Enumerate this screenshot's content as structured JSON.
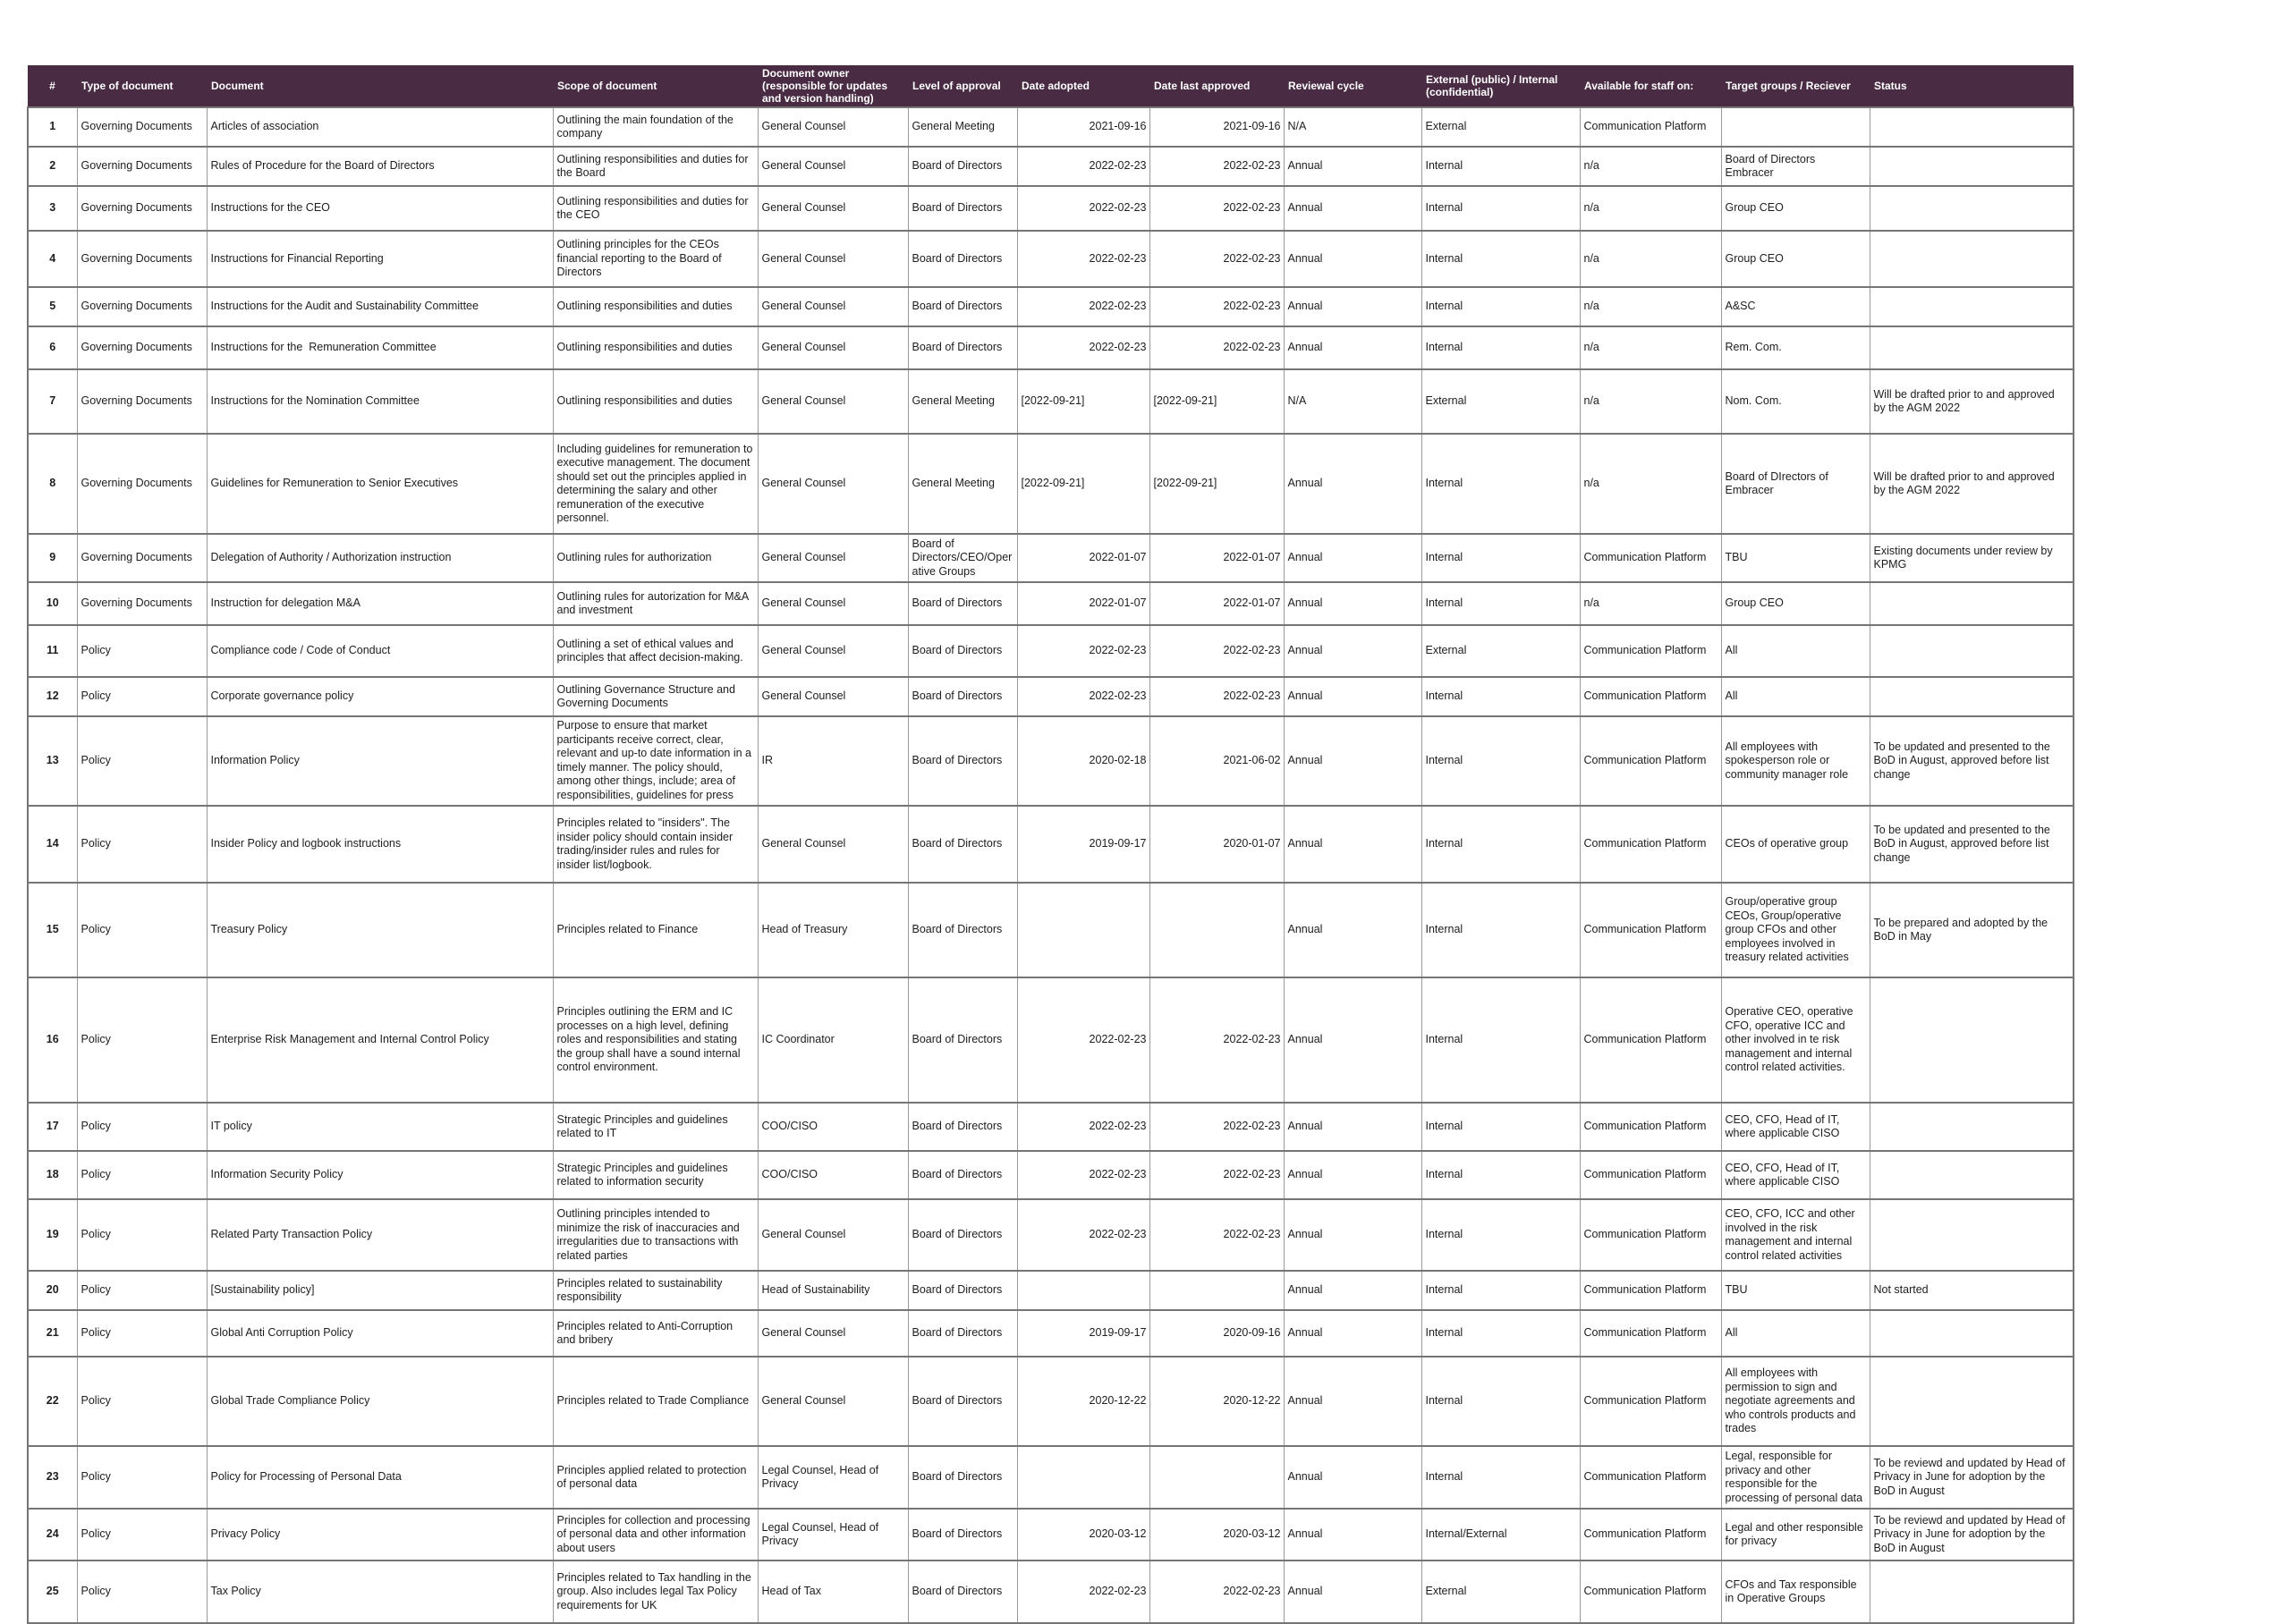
{
  "theme": {
    "header_bg": "#4a2b44",
    "header_text": "#ffffff",
    "grid_vertical": "#9a9a9a",
    "grid_horizontal": "#757575",
    "body_text": "#1d1d1d",
    "page_bg": "#ffffff"
  },
  "table": {
    "columns": [
      {
        "key": "num",
        "label": "#"
      },
      {
        "key": "type",
        "label": "Type of document"
      },
      {
        "key": "document",
        "label": "Document"
      },
      {
        "key": "scope",
        "label": "Scope of document"
      },
      {
        "key": "owner",
        "label": "Document owner (responsible for updates and version handling)"
      },
      {
        "key": "approval",
        "label": "Level of approval"
      },
      {
        "key": "date_adopted",
        "label": "Date adopted"
      },
      {
        "key": "date_last_approved",
        "label": "Date last approved"
      },
      {
        "key": "reviewal_cycle",
        "label": "Reviewal cycle"
      },
      {
        "key": "visibility",
        "label": "External (public) / Internal (confidential)"
      },
      {
        "key": "available_on",
        "label": "Available for staff on:"
      },
      {
        "key": "target_groups",
        "label": "Target groups / Reciever"
      },
      {
        "key": "status",
        "label": "Status"
      }
    ],
    "rows": [
      [
        "1",
        "Governing Documents",
        "Articles of association",
        "Outlining the main foundation of the company",
        "General Counsel",
        "General Meeting",
        "2021-09-16",
        "2021-09-16",
        "N/A",
        "External",
        "Communication Platform",
        "",
        ""
      ],
      [
        "2",
        "Governing Documents",
        "Rules of Procedure for the Board of Directors",
        "Outlining responsibilities and duties for the Board",
        "General Counsel",
        "Board of Directors",
        "2022-02-23",
        "2022-02-23",
        "Annual",
        "Internal",
        "n/a",
        "Board of Directors Embracer",
        ""
      ],
      [
        "3",
        "Governing Documents",
        "Instructions for the CEO",
        "Outlining responsibilities and duties for the CEO",
        "General Counsel",
        "Board of Directors",
        "2022-02-23",
        "2022-02-23",
        "Annual",
        "Internal",
        "n/a",
        "Group CEO",
        ""
      ],
      [
        "4",
        "Governing Documents",
        "Instructions for Financial Reporting",
        "Outlining principles for the CEOs financial reporting to the Board of Directors",
        "General Counsel",
        "Board of Directors",
        "2022-02-23",
        "2022-02-23",
        "Annual",
        "Internal",
        "n/a",
        "Group CEO",
        ""
      ],
      [
        "5",
        "Governing Documents",
        "Instructions for the Audit and Sustainability Committee",
        "Outlining responsibilities and duties",
        "General Counsel",
        "Board of Directors",
        "2022-02-23",
        "2022-02-23",
        "Annual",
        "Internal",
        "n/a",
        "A&SC",
        ""
      ],
      [
        "6",
        "Governing Documents",
        "Instructions for the  Remuneration Committee",
        "Outlining responsibilities and duties",
        "General Counsel",
        "Board of Directors",
        "2022-02-23",
        "2022-02-23",
        "Annual",
        "Internal",
        "n/a",
        "Rem. Com.",
        ""
      ],
      [
        "7",
        "Governing Documents",
        "Instructions for the Nomination Committee",
        "Outlining responsibilities and duties",
        "General Counsel",
        "General Meeting",
        "[2022-09-21]",
        "[2022-09-21]",
        "N/A",
        "External",
        "n/a",
        "Nom. Com.",
        "Will be drafted prior to and approved by the AGM 2022"
      ],
      [
        "8",
        "Governing Documents",
        "Guidelines for Remuneration to Senior Executives",
        "Including guidelines for remuneration to executive management. The document should set out the principles applied in determining the salary and other remuneration of the executive personnel.",
        "General Counsel",
        "General Meeting",
        "[2022-09-21]",
        "[2022-09-21]",
        "Annual",
        "Internal",
        "n/a",
        "Board of DIrectors of Embracer",
        "Will be drafted prior to and approved by the AGM 2022"
      ],
      [
        "9",
        "Governing Documents",
        "Delegation of Authority / Authorization instruction",
        "Outlining rules for authorization",
        "General Counsel",
        "Board of Directors/CEO/Operative Groups",
        "2022-01-07",
        "2022-01-07",
        "Annual",
        "Internal",
        "Communication Platform",
        "TBU",
        "Existing documents under review by KPMG"
      ],
      [
        "10",
        "Governing Documents",
        "Instruction for delegation M&A",
        "Outlining rules for autorization for M&A and investment",
        "General Counsel",
        "Board of Directors",
        "2022-01-07",
        "2022-01-07",
        "Annual",
        "Internal",
        "n/a",
        "Group CEO",
        ""
      ],
      [
        "11",
        "Policy",
        "Compliance code / Code of Conduct",
        "Outlining a set of ethical values and principles that affect decision-making.",
        "General Counsel",
        "Board of Directors",
        "2022-02-23",
        "2022-02-23",
        "Annual",
        "External",
        "Communication Platform",
        "All",
        ""
      ],
      [
        "12",
        "Policy",
        "Corporate governance policy",
        "Outlining Governance Structure and Governing Documents",
        "General Counsel",
        "Board of Directors",
        "2022-02-23",
        "2022-02-23",
        "Annual",
        "Internal",
        "Communication Platform",
        "All",
        ""
      ],
      [
        "13",
        "Policy",
        "Information Policy",
        "Purpose to ensure that market participants receive correct, clear, relevant and up-to date information in a timely manner. The policy should, among other things, include; area of responsibilities, guidelines for press releases, AGM and",
        "IR",
        "Board of Directors",
        "2020-02-18",
        "2021-06-02",
        "Annual",
        "Internal",
        "Communication Platform",
        "All employees with spokesperson role or community manager role",
        "To be updated and presented to the BoD in August, approved before list change"
      ],
      [
        "14",
        "Policy",
        "Insider Policy and logbook instructions",
        "Principles related to \"insiders\". The insider policy should contain insider trading/insider rules and rules for insider list/logbook.",
        "General Counsel",
        "Board of Directors",
        "2019-09-17",
        "2020-01-07",
        "Annual",
        "Internal",
        "Communication Platform",
        "CEOs of operative group",
        "To be updated and presented to the BoD in August, approved before list change"
      ],
      [
        "15",
        "Policy",
        "Treasury Policy",
        "Principles related to Finance",
        "Head of Treasury",
        "Board of Directors",
        "",
        "",
        "Annual",
        "Internal",
        "Communication Platform",
        "Group/operative group CEOs, Group/operative group CFOs and other employees involved in treasury related activities",
        "To be prepared and adopted by the BoD in May"
      ],
      [
        "16",
        "Policy",
        "Enterprise Risk Management and Internal Control Policy",
        "Principles outlining the ERM and IC processes on a high level, defining roles and responsibilities and stating the group shall have a sound internal control environment.",
        "IC Coordinator",
        "Board of Directors",
        "2022-02-23",
        "2022-02-23",
        "Annual",
        "Internal",
        "Communication Platform",
        "Operative CEO, operative CFO, operative ICC and other involved in te risk management and internal control related activities.",
        ""
      ],
      [
        "17",
        "Policy",
        "IT policy",
        "Strategic Principles and guidelines related to IT",
        "COO/CISO",
        "Board of Directors",
        "2022-02-23",
        "2022-02-23",
        "Annual",
        "Internal",
        "Communication Platform",
        "CEO, CFO, Head of IT, where applicable CISO",
        ""
      ],
      [
        "18",
        "Policy",
        "Information Security Policy",
        "Strategic Principles and guidelines related to information security",
        "COO/CISO",
        "Board of Directors",
        "2022-02-23",
        "2022-02-23",
        "Annual",
        "Internal",
        "Communication Platform",
        "CEO, CFO, Head of IT, where applicable CISO",
        ""
      ],
      [
        "19",
        "Policy",
        "Related Party Transaction Policy",
        "Outlining principles intended to minimize the risk of inaccuracies and irregularities due to transactions with related parties",
        "General Counsel",
        "Board of Directors",
        "2022-02-23",
        "2022-02-23",
        "Annual",
        "Internal",
        "Communication Platform",
        "CEO, CFO, ICC and other involved in the risk management and internal control related activities",
        ""
      ],
      [
        "20",
        "Policy",
        "[Sustainability policy]",
        "Principles related to sustainability responsibility",
        "Head of Sustainability",
        "Board of Directors",
        "",
        "",
        "Annual",
        "Internal",
        "Communication Platform",
        "TBU",
        "Not started"
      ],
      [
        "21",
        "Policy",
        "Global Anti Corruption Policy",
        "Principles related to Anti-Corruption and bribery",
        "General Counsel",
        "Board of Directors",
        "2019-09-17",
        "2020-09-16",
        "Annual",
        "Internal",
        "Communication Platform",
        "All",
        ""
      ],
      [
        "22",
        "Policy",
        "Global Trade Compliance Policy",
        "Principles related to Trade Compliance",
        "General Counsel",
        "Board of Directors",
        "2020-12-22",
        "2020-12-22",
        "Annual",
        "Internal",
        "Communication Platform",
        "All employees with permission to sign and negotiate agreements and who controls products and trades",
        ""
      ],
      [
        "23",
        "Policy",
        "Policy for Processing of Personal Data",
        "Principles applied related to protection of personal data",
        "Legal Counsel, Head of Privacy",
        "Board of Directors",
        "",
        "",
        "Annual",
        "Internal",
        "Communication Platform",
        "Legal, responsible for privacy and other responsible for the processing of personal data",
        "To be reviewd and updated by Head of Privacy in June for adoption by the BoD in August"
      ],
      [
        "24",
        "Policy",
        "Privacy Policy",
        "Principles for collection and processing of personal data and other information about users",
        "Legal Counsel, Head of Privacy",
        "Board of Directors",
        "2020-03-12",
        "2020-03-12",
        "Annual",
        "Internal/External",
        "Communication Platform",
        "Legal and other responsible for privacy",
        "To be reviewd and updated by Head of Privacy in June for adoption by the BoD in August"
      ],
      [
        "25",
        "Policy",
        "Tax Policy",
        "Principles related to Tax handling in the group. Also includes legal Tax Policy requirements for UK",
        "Head of Tax",
        "Board of Directors",
        "2022-02-23",
        "2022-02-23",
        "Annual",
        "External",
        "Communication Platform",
        "CFOs and Tax responsible in Operative Groups",
        ""
      ]
    ]
  }
}
